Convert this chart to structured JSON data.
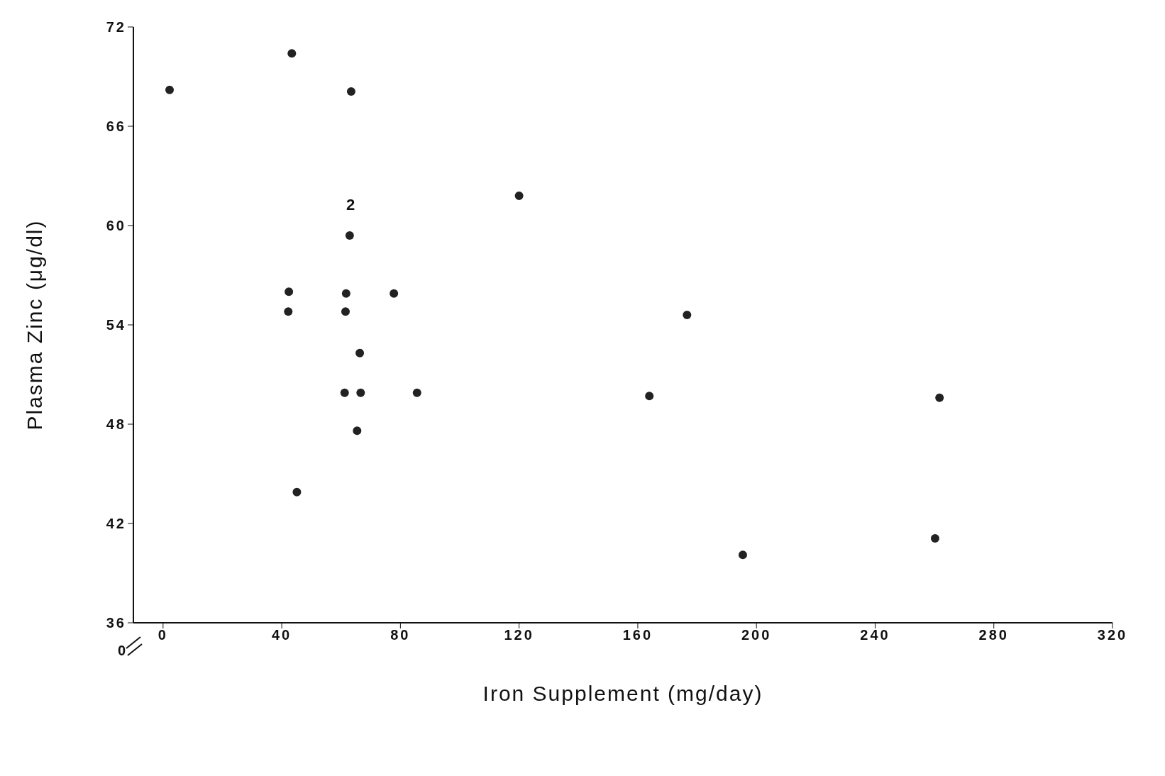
{
  "chart_data": {
    "type": "scatter",
    "xlabel": "Iron  Supplement  (mg/day)",
    "ylabel": "Plasma  Zinc  (μg/dl)",
    "x": [
      2.2,
      43.4,
      63.4,
      120,
      62.9,
      42.4,
      61.7,
      77.8,
      42.2,
      61.5,
      176.6,
      66.3,
      61.2,
      66.6,
      85.6,
      163.9,
      261.7,
      65.4,
      45.1,
      260.2,
      195.4
    ],
    "values": [
      68.2,
      70.4,
      68.1,
      61.8,
      59.4,
      56.0,
      55.9,
      55.9,
      54.8,
      54.8,
      54.6,
      52.3,
      49.9,
      49.9,
      49.9,
      49.7,
      49.6,
      47.6,
      43.9,
      41.1,
      40.1
    ],
    "color": "#222222",
    "marker": "circle",
    "xlim": [
      -10,
      320
    ],
    "xticks": [
      0,
      40,
      80,
      120,
      160,
      200,
      240,
      280,
      320
    ],
    "ylim": [
      36,
      72
    ],
    "yticks": [
      36,
      42,
      48,
      54,
      60,
      66,
      72
    ],
    "annotations": [
      "2",
      "0"
    ],
    "grid": false,
    "legend": false
  }
}
